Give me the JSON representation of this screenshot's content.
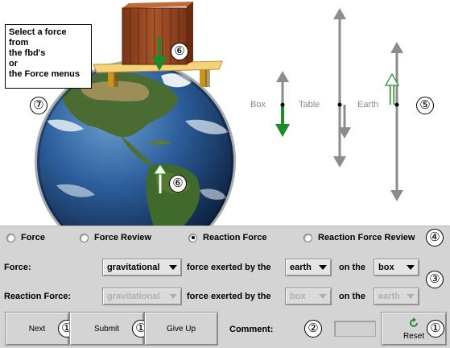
{
  "instructions": "Select a force\nfrom\nthe fbd's\nor\nthe Force menus",
  "markers": {
    "m1": "①",
    "m2": "②",
    "m3": "③",
    "m4": "④",
    "m5": "⑤",
    "m6": "⑥",
    "m7": "⑦"
  },
  "fbd_labels": {
    "box": "Box",
    "table": "Table",
    "earth": "Earth"
  },
  "tabs": [
    {
      "label": "Force",
      "selected": false
    },
    {
      "label": "Force Review",
      "selected": false
    },
    {
      "label": "Reaction Force",
      "selected": true
    },
    {
      "label": "Reaction Force Review",
      "selected": false
    }
  ],
  "force_row": {
    "label": "Force:",
    "type_value": "gravitational",
    "exerted_by_label": "force exerted by the",
    "by_value": "earth",
    "on_label": "on the",
    "on_value": "box"
  },
  "reaction_row": {
    "label": "Reaction Force:",
    "type_value": "gravitational",
    "exerted_by_label": "force exerted by the",
    "by_value": "box",
    "on_label": "on the",
    "on_value": "earth"
  },
  "buttons": {
    "next": "Next",
    "submit": "Submit",
    "give_up": "Give Up",
    "reset": "Reset"
  },
  "comment_label": "Comment:",
  "colors": {
    "force_arrow": "#1f8a2a",
    "fbd_arrow": "#8c8c8c",
    "panel_bg": "#d4d4d4",
    "box_wood": "#9a4a22",
    "table_top": "#f3d37a"
  }
}
